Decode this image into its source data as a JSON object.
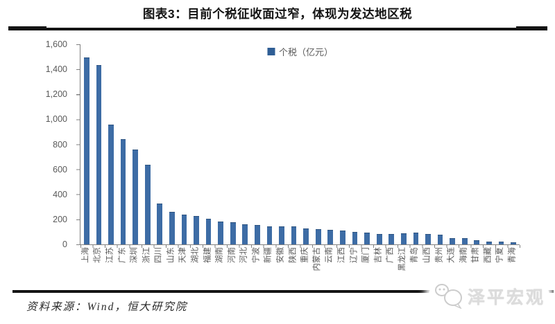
{
  "header": {
    "title": "图表3：目前个税征收面过窄，体现为发达地区税"
  },
  "chart_data": {
    "type": "bar",
    "title": "图表3：目前个税征收面过窄，体现为发达地区税",
    "legend_label": "个税（亿元）",
    "legend_position": "top-center",
    "grid": false,
    "ylim": [
      0,
      1600
    ],
    "ytick_interval": 200,
    "ytick_labels": [
      "1,600",
      "1,400",
      "1,200",
      "1,000",
      "800",
      "600",
      "400",
      "200",
      "0"
    ],
    "xlabel": "",
    "ylabel": "",
    "bar_color": "#3d6ca5",
    "categories": [
      "上海",
      "北京",
      "江苏",
      "广东",
      "深圳",
      "浙江",
      "四川",
      "山东",
      "天津",
      "湖北",
      "福建",
      "湖南",
      "河南",
      "河北",
      "宁波",
      "新疆",
      "安徽",
      "陕西",
      "重庆",
      "内蒙古",
      "云南",
      "江西",
      "辽宁",
      "厦门",
      "吉林",
      "广西",
      "黑龙江",
      "青岛",
      "山西",
      "贵州",
      "大连",
      "海南",
      "甘肃",
      "西藏",
      "宁夏",
      "青海"
    ],
    "values": [
      1490,
      1430,
      955,
      835,
      755,
      630,
      320,
      255,
      232,
      222,
      197,
      180,
      171,
      155,
      150,
      141,
      139,
      138,
      120,
      118,
      111,
      103,
      92,
      90,
      80,
      80,
      83,
      88,
      78,
      74,
      47,
      46,
      30,
      19,
      15,
      10
    ]
  },
  "footer": {
    "source": "资料来源：Wind，恒大研究院",
    "watermark": "泽平宏观"
  }
}
